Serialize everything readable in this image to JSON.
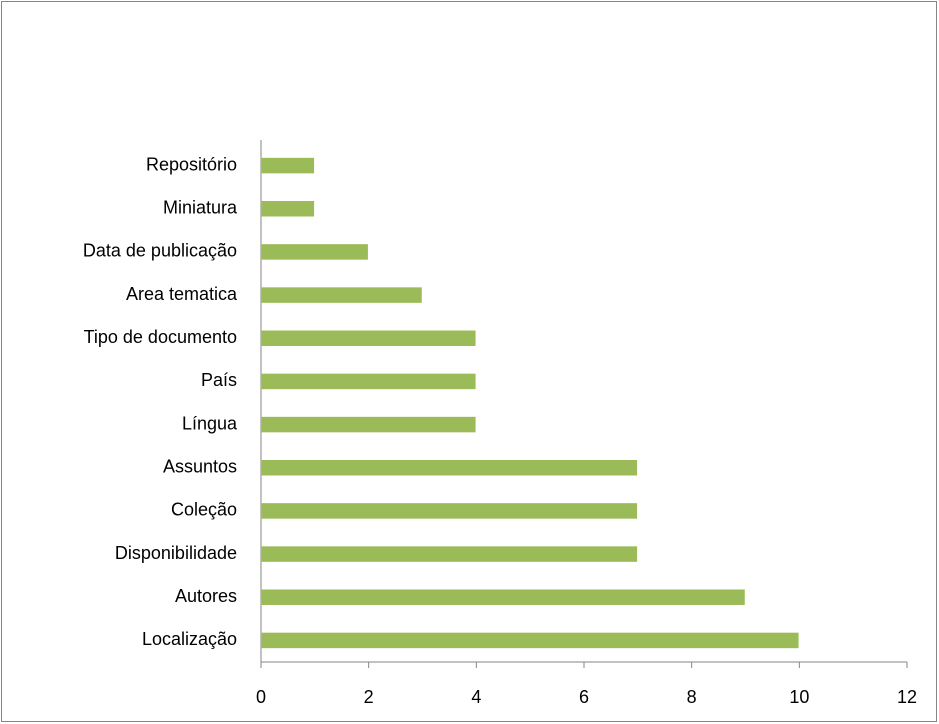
{
  "chart_data": {
    "type": "barh",
    "categories": [
      "Repositório",
      "Miniatura",
      "Data de publicação",
      "Area tematica",
      "Tipo de documento",
      "País",
      "Língua",
      "Assuntos",
      "Coleção",
      "Disponibilidade",
      "Autores",
      "Localização"
    ],
    "values": [
      1,
      1,
      2,
      3,
      4,
      4,
      4,
      7,
      7,
      7,
      9,
      10
    ],
    "color": "#9bbb59",
    "xlim": [
      0,
      12
    ],
    "xticks": [
      0,
      2,
      4,
      6,
      8,
      10,
      12
    ],
    "grid": false
  }
}
